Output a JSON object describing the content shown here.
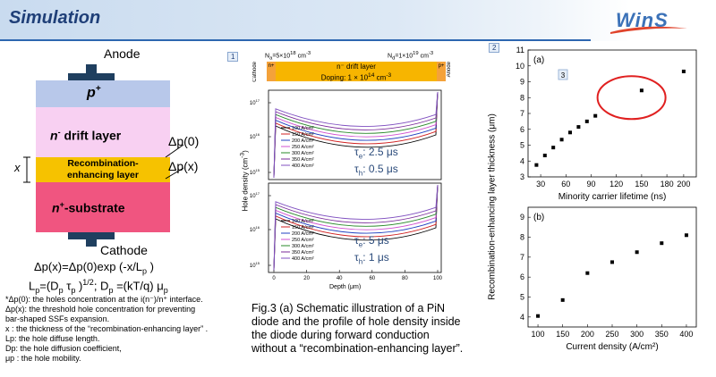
{
  "header": {
    "title": "Simulation",
    "logo": "WinS"
  },
  "diagram": {
    "anode": "Anode",
    "cathode": "Cathode",
    "p_plus": "p",
    "p_plus_sup": "+",
    "drift": "n",
    "drift_sup": "-",
    "drift_rest": " drift layer",
    "recomb": "Recombination-",
    "recomb2": "enhancing layer",
    "substrate": "n",
    "substrate_sup": "+",
    "substrate_rest": "-substrate",
    "x_label": "x",
    "dp0": "Δp(0)",
    "dpx": "Δp(x)"
  },
  "equations": {
    "eq1": "Δp(x)=Δp(0)exp (-x/L",
    "eq1_sub": "p",
    "eq1_end": " )",
    "eq2_a": "L",
    "eq2_b": "p",
    "eq2_c": "=(D",
    "eq2_d": "p",
    "eq2_e": " τ",
    "eq2_f": "p",
    "eq2_g": " )",
    "eq2_h": "1/2",
    "eq2_i": ";  D",
    "eq2_j": "p",
    "eq2_k": " =(kT/q) μ",
    "eq2_l": "p"
  },
  "notes": [
    "*Δp(0): the holes concentration at the i(n⁻)/n⁺ interface.",
    "Δp(x): the threshold hole concentration for preventing",
    "  bar-shaped SSFs expansion.",
    "x : the thickness of the “recombination-enhancing layer” .",
    "Lp: the hole diffuse length.",
    "Dp: the hole diffusion coefficient,",
    "μp : the hole mobility."
  ],
  "panel1": {
    "tag": "1",
    "na": "N",
    "na_sub": "a",
    "na_val": "=5×10",
    "na_exp": "18",
    "na_unit": " cm",
    "na_unit_exp": "-3",
    "nd": "N",
    "nd_sub": "d",
    "nd_val": "=1×10",
    "nd_exp": "19",
    "nd_unit": " cm",
    "nd_unit_exp": "-3",
    "cathode": "Cathode",
    "anode": "Anode",
    "n_plus": "n+",
    "p_plus": "p+",
    "drift_title": "n⁻ drift layer",
    "doping": "Doping: 1 × 10",
    "doping_exp": "14",
    "doping_unit": " cm",
    "doping_unit_exp": "-3",
    "ylabel": "Hole density (cm",
    "ylabel_exp": "-3",
    "ylabel_end": ")",
    "xlabel": "Depth (μm)",
    "top_te": "τ",
    "top_te_sub": "e",
    "top_te_val": ": 2.5 μs",
    "top_th": "τ",
    "top_th_sub": "h",
    "top_th_val": ": 0.5 μs",
    "bot_te": "τ",
    "bot_te_sub": "e",
    "bot_te_val": ": 5 μs",
    "bot_th": "τ",
    "bot_th_sub": "h",
    "bot_th_val": ": 1 μs",
    "legend": [
      "100 A/cm²",
      "150 A/cm²",
      "200 A/cm²",
      "250 A/cm²",
      "300 A/cm²",
      "350 A/cm²",
      "400 A/cm²"
    ],
    "legend_colors": [
      "#000000",
      "#d02020",
      "#2040c0",
      "#d050d0",
      "#2a8a2a",
      "#7a2a9a",
      "#8050c0"
    ],
    "x_ticks": [
      "0",
      "20",
      "40",
      "60",
      "80",
      "100"
    ],
    "y_ticks": [
      "10",
      "10",
      "10"
    ],
    "y_tick_exp": [
      "17",
      "16",
      "15"
    ]
  },
  "caption": {
    "lines": [
      "Fig.3 (a) Schematic illustration of a PiN",
      "diode and the profile of hole density inside",
      "the diode during forward conduction",
      "without a “recombination-enhancing layer”."
    ]
  },
  "panel2": {
    "tag": "2",
    "marker_tag": "3",
    "ylabel": "Recombination-enhancing layer thickness (μm)",
    "a": {
      "label": "(a)",
      "xlabel": "Minority carrier lifetime (ns)",
      "x_ticks": [
        "30",
        "60",
        "90",
        "120",
        "150",
        "180",
        "200"
      ],
      "y_ticks": [
        "3",
        "4",
        "5",
        "6",
        "7",
        "8",
        "9",
        "10",
        "11"
      ]
    },
    "b": {
      "label": "(b)",
      "xlabel": "Current density (A/cm²)",
      "x_ticks": [
        "100",
        "150",
        "200",
        "250",
        "300",
        "350",
        "400"
      ],
      "y_ticks": [
        "4",
        "5",
        "6",
        "7",
        "8",
        "9"
      ]
    }
  },
  "chart_data": [
    {
      "type": "scatter",
      "title": "(a)",
      "xlabel": "Minority carrier lifetime (ns)",
      "ylabel": "Recombination-enhancing layer thickness (μm)",
      "xlim": [
        15,
        215
      ],
      "ylim": [
        3,
        11
      ],
      "x": [
        25,
        35,
        45,
        55,
        65,
        75,
        85,
        95,
        150,
        200
      ],
      "y": [
        3.75,
        4.35,
        4.85,
        5.35,
        5.8,
        6.15,
        6.5,
        6.85,
        8.45,
        9.65
      ]
    },
    {
      "type": "scatter",
      "title": "(b)",
      "xlabel": "Current density (A/cm²)",
      "ylabel": "Recombination-enhancing layer thickness (μm)",
      "xlim": [
        80,
        420
      ],
      "ylim": [
        3.5,
        9.5
      ],
      "x": [
        100,
        150,
        200,
        250,
        300,
        350,
        400
      ],
      "y": [
        4.05,
        4.85,
        6.2,
        6.75,
        7.25,
        7.7,
        8.1
      ]
    }
  ]
}
